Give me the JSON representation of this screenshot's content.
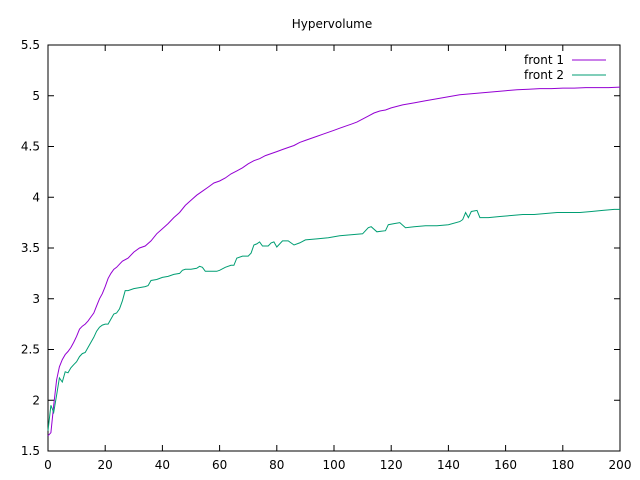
{
  "chart_data": {
    "type": "line",
    "title": "Hypervolume",
    "xlabel": "",
    "ylabel": "",
    "xlim": [
      0,
      200
    ],
    "ylim": [
      1.5,
      5.5
    ],
    "x_ticks": [
      0,
      20,
      40,
      60,
      80,
      100,
      120,
      140,
      160,
      180,
      200
    ],
    "y_ticks": [
      1.5,
      2,
      2.5,
      3,
      3.5,
      4,
      4.5,
      5,
      5.5
    ],
    "x_tick_labels": [
      "0",
      "20",
      "40",
      "60",
      "80",
      "100",
      "120",
      "140",
      "160",
      "180",
      "200"
    ],
    "y_tick_labels": [
      "1.5",
      "2",
      "2.5",
      "3",
      "3.5",
      "4",
      "4.5",
      "5",
      "5.5"
    ],
    "grid": false,
    "legend_position": "top-right",
    "series": [
      {
        "name": "front 1",
        "color": "#9400d3",
        "points": [
          [
            0,
            1.65
          ],
          [
            1,
            1.68
          ],
          [
            2,
            1.95
          ],
          [
            3,
            2.2
          ],
          [
            4,
            2.33
          ],
          [
            5,
            2.4
          ],
          [
            6,
            2.45
          ],
          [
            7,
            2.48
          ],
          [
            8,
            2.52
          ],
          [
            9,
            2.57
          ],
          [
            10,
            2.63
          ],
          [
            11,
            2.7
          ],
          [
            12,
            2.73
          ],
          [
            13,
            2.75
          ],
          [
            14,
            2.78
          ],
          [
            15,
            2.82
          ],
          [
            16,
            2.86
          ],
          [
            17,
            2.93
          ],
          [
            18,
            3.0
          ],
          [
            19,
            3.05
          ],
          [
            20,
            3.12
          ],
          [
            21,
            3.2
          ],
          [
            22,
            3.25
          ],
          [
            23,
            3.29
          ],
          [
            24,
            3.31
          ],
          [
            25,
            3.34
          ],
          [
            26,
            3.37
          ],
          [
            28,
            3.4
          ],
          [
            30,
            3.46
          ],
          [
            32,
            3.5
          ],
          [
            34,
            3.52
          ],
          [
            36,
            3.57
          ],
          [
            38,
            3.64
          ],
          [
            40,
            3.69
          ],
          [
            42,
            3.74
          ],
          [
            44,
            3.8
          ],
          [
            46,
            3.85
          ],
          [
            48,
            3.92
          ],
          [
            50,
            3.97
          ],
          [
            52,
            4.02
          ],
          [
            54,
            4.06
          ],
          [
            56,
            4.1
          ],
          [
            58,
            4.14
          ],
          [
            60,
            4.16
          ],
          [
            62,
            4.19
          ],
          [
            64,
            4.23
          ],
          [
            66,
            4.26
          ],
          [
            68,
            4.29
          ],
          [
            70,
            4.33
          ],
          [
            72,
            4.36
          ],
          [
            74,
            4.38
          ],
          [
            76,
            4.41
          ],
          [
            78,
            4.43
          ],
          [
            80,
            4.45
          ],
          [
            82,
            4.47
          ],
          [
            84,
            4.49
          ],
          [
            86,
            4.51
          ],
          [
            88,
            4.54
          ],
          [
            90,
            4.56
          ],
          [
            92,
            4.58
          ],
          [
            94,
            4.6
          ],
          [
            96,
            4.62
          ],
          [
            98,
            4.64
          ],
          [
            100,
            4.66
          ],
          [
            102,
            4.68
          ],
          [
            104,
            4.7
          ],
          [
            106,
            4.72
          ],
          [
            108,
            4.74
          ],
          [
            110,
            4.77
          ],
          [
            112,
            4.8
          ],
          [
            114,
            4.83
          ],
          [
            116,
            4.85
          ],
          [
            118,
            4.86
          ],
          [
            120,
            4.88
          ],
          [
            124,
            4.91
          ],
          [
            128,
            4.93
          ],
          [
            132,
            4.95
          ],
          [
            136,
            4.97
          ],
          [
            140,
            4.99
          ],
          [
            144,
            5.01
          ],
          [
            148,
            5.02
          ],
          [
            152,
            5.03
          ],
          [
            156,
            5.04
          ],
          [
            160,
            5.05
          ],
          [
            164,
            5.06
          ],
          [
            168,
            5.065
          ],
          [
            172,
            5.07
          ],
          [
            176,
            5.07
          ],
          [
            180,
            5.075
          ],
          [
            184,
            5.075
          ],
          [
            188,
            5.08
          ],
          [
            192,
            5.08
          ],
          [
            196,
            5.08
          ],
          [
            200,
            5.085
          ]
        ]
      },
      {
        "name": "front 2",
        "color": "#009e73",
        "points": [
          [
            0,
            1.7
          ],
          [
            1,
            1.95
          ],
          [
            2,
            1.88
          ],
          [
            3,
            2.05
          ],
          [
            4,
            2.22
          ],
          [
            5,
            2.18
          ],
          [
            6,
            2.28
          ],
          [
            7,
            2.27
          ],
          [
            8,
            2.32
          ],
          [
            9,
            2.35
          ],
          [
            10,
            2.38
          ],
          [
            11,
            2.43
          ],
          [
            12,
            2.46
          ],
          [
            13,
            2.47
          ],
          [
            14,
            2.52
          ],
          [
            15,
            2.57
          ],
          [
            16,
            2.62
          ],
          [
            17,
            2.68
          ],
          [
            18,
            2.72
          ],
          [
            19,
            2.74
          ],
          [
            20,
            2.75
          ],
          [
            21,
            2.75
          ],
          [
            22,
            2.8
          ],
          [
            23,
            2.85
          ],
          [
            24,
            2.86
          ],
          [
            25,
            2.9
          ],
          [
            26,
            2.98
          ],
          [
            27,
            3.08
          ],
          [
            28,
            3.08
          ],
          [
            30,
            3.1
          ],
          [
            32,
            3.11
          ],
          [
            34,
            3.12
          ],
          [
            35,
            3.13
          ],
          [
            36,
            3.18
          ],
          [
            38,
            3.19
          ],
          [
            40,
            3.21
          ],
          [
            42,
            3.22
          ],
          [
            44,
            3.24
          ],
          [
            46,
            3.25
          ],
          [
            47,
            3.28
          ],
          [
            48,
            3.29
          ],
          [
            50,
            3.29
          ],
          [
            52,
            3.3
          ],
          [
            53,
            3.32
          ],
          [
            54,
            3.31
          ],
          [
            55,
            3.27
          ],
          [
            57,
            3.27
          ],
          [
            59,
            3.27
          ],
          [
            60,
            3.28
          ],
          [
            62,
            3.31
          ],
          [
            64,
            3.33
          ],
          [
            65,
            3.33
          ],
          [
            66,
            3.4
          ],
          [
            68,
            3.42
          ],
          [
            70,
            3.42
          ],
          [
            71,
            3.45
          ],
          [
            72,
            3.53
          ],
          [
            73,
            3.54
          ],
          [
            74,
            3.56
          ],
          [
            75,
            3.52
          ],
          [
            77,
            3.52
          ],
          [
            78,
            3.55
          ],
          [
            79,
            3.56
          ],
          [
            80,
            3.51
          ],
          [
            82,
            3.57
          ],
          [
            84,
            3.57
          ],
          [
            86,
            3.53
          ],
          [
            88,
            3.55
          ],
          [
            90,
            3.58
          ],
          [
            94,
            3.59
          ],
          [
            98,
            3.6
          ],
          [
            102,
            3.62
          ],
          [
            106,
            3.63
          ],
          [
            110,
            3.64
          ],
          [
            112,
            3.7
          ],
          [
            113,
            3.71
          ],
          [
            115,
            3.66
          ],
          [
            118,
            3.67
          ],
          [
            119,
            3.73
          ],
          [
            121,
            3.74
          ],
          [
            123,
            3.75
          ],
          [
            125,
            3.7
          ],
          [
            128,
            3.71
          ],
          [
            132,
            3.72
          ],
          [
            136,
            3.72
          ],
          [
            140,
            3.73
          ],
          [
            144,
            3.76
          ],
          [
            145,
            3.78
          ],
          [
            146,
            3.85
          ],
          [
            147,
            3.8
          ],
          [
            148,
            3.86
          ],
          [
            150,
            3.87
          ],
          [
            151,
            3.8
          ],
          [
            154,
            3.8
          ],
          [
            158,
            3.81
          ],
          [
            162,
            3.82
          ],
          [
            166,
            3.83
          ],
          [
            170,
            3.83
          ],
          [
            174,
            3.84
          ],
          [
            178,
            3.85
          ],
          [
            182,
            3.85
          ],
          [
            186,
            3.85
          ],
          [
            190,
            3.86
          ],
          [
            194,
            3.87
          ],
          [
            198,
            3.88
          ],
          [
            200,
            3.88
          ]
        ]
      }
    ]
  }
}
